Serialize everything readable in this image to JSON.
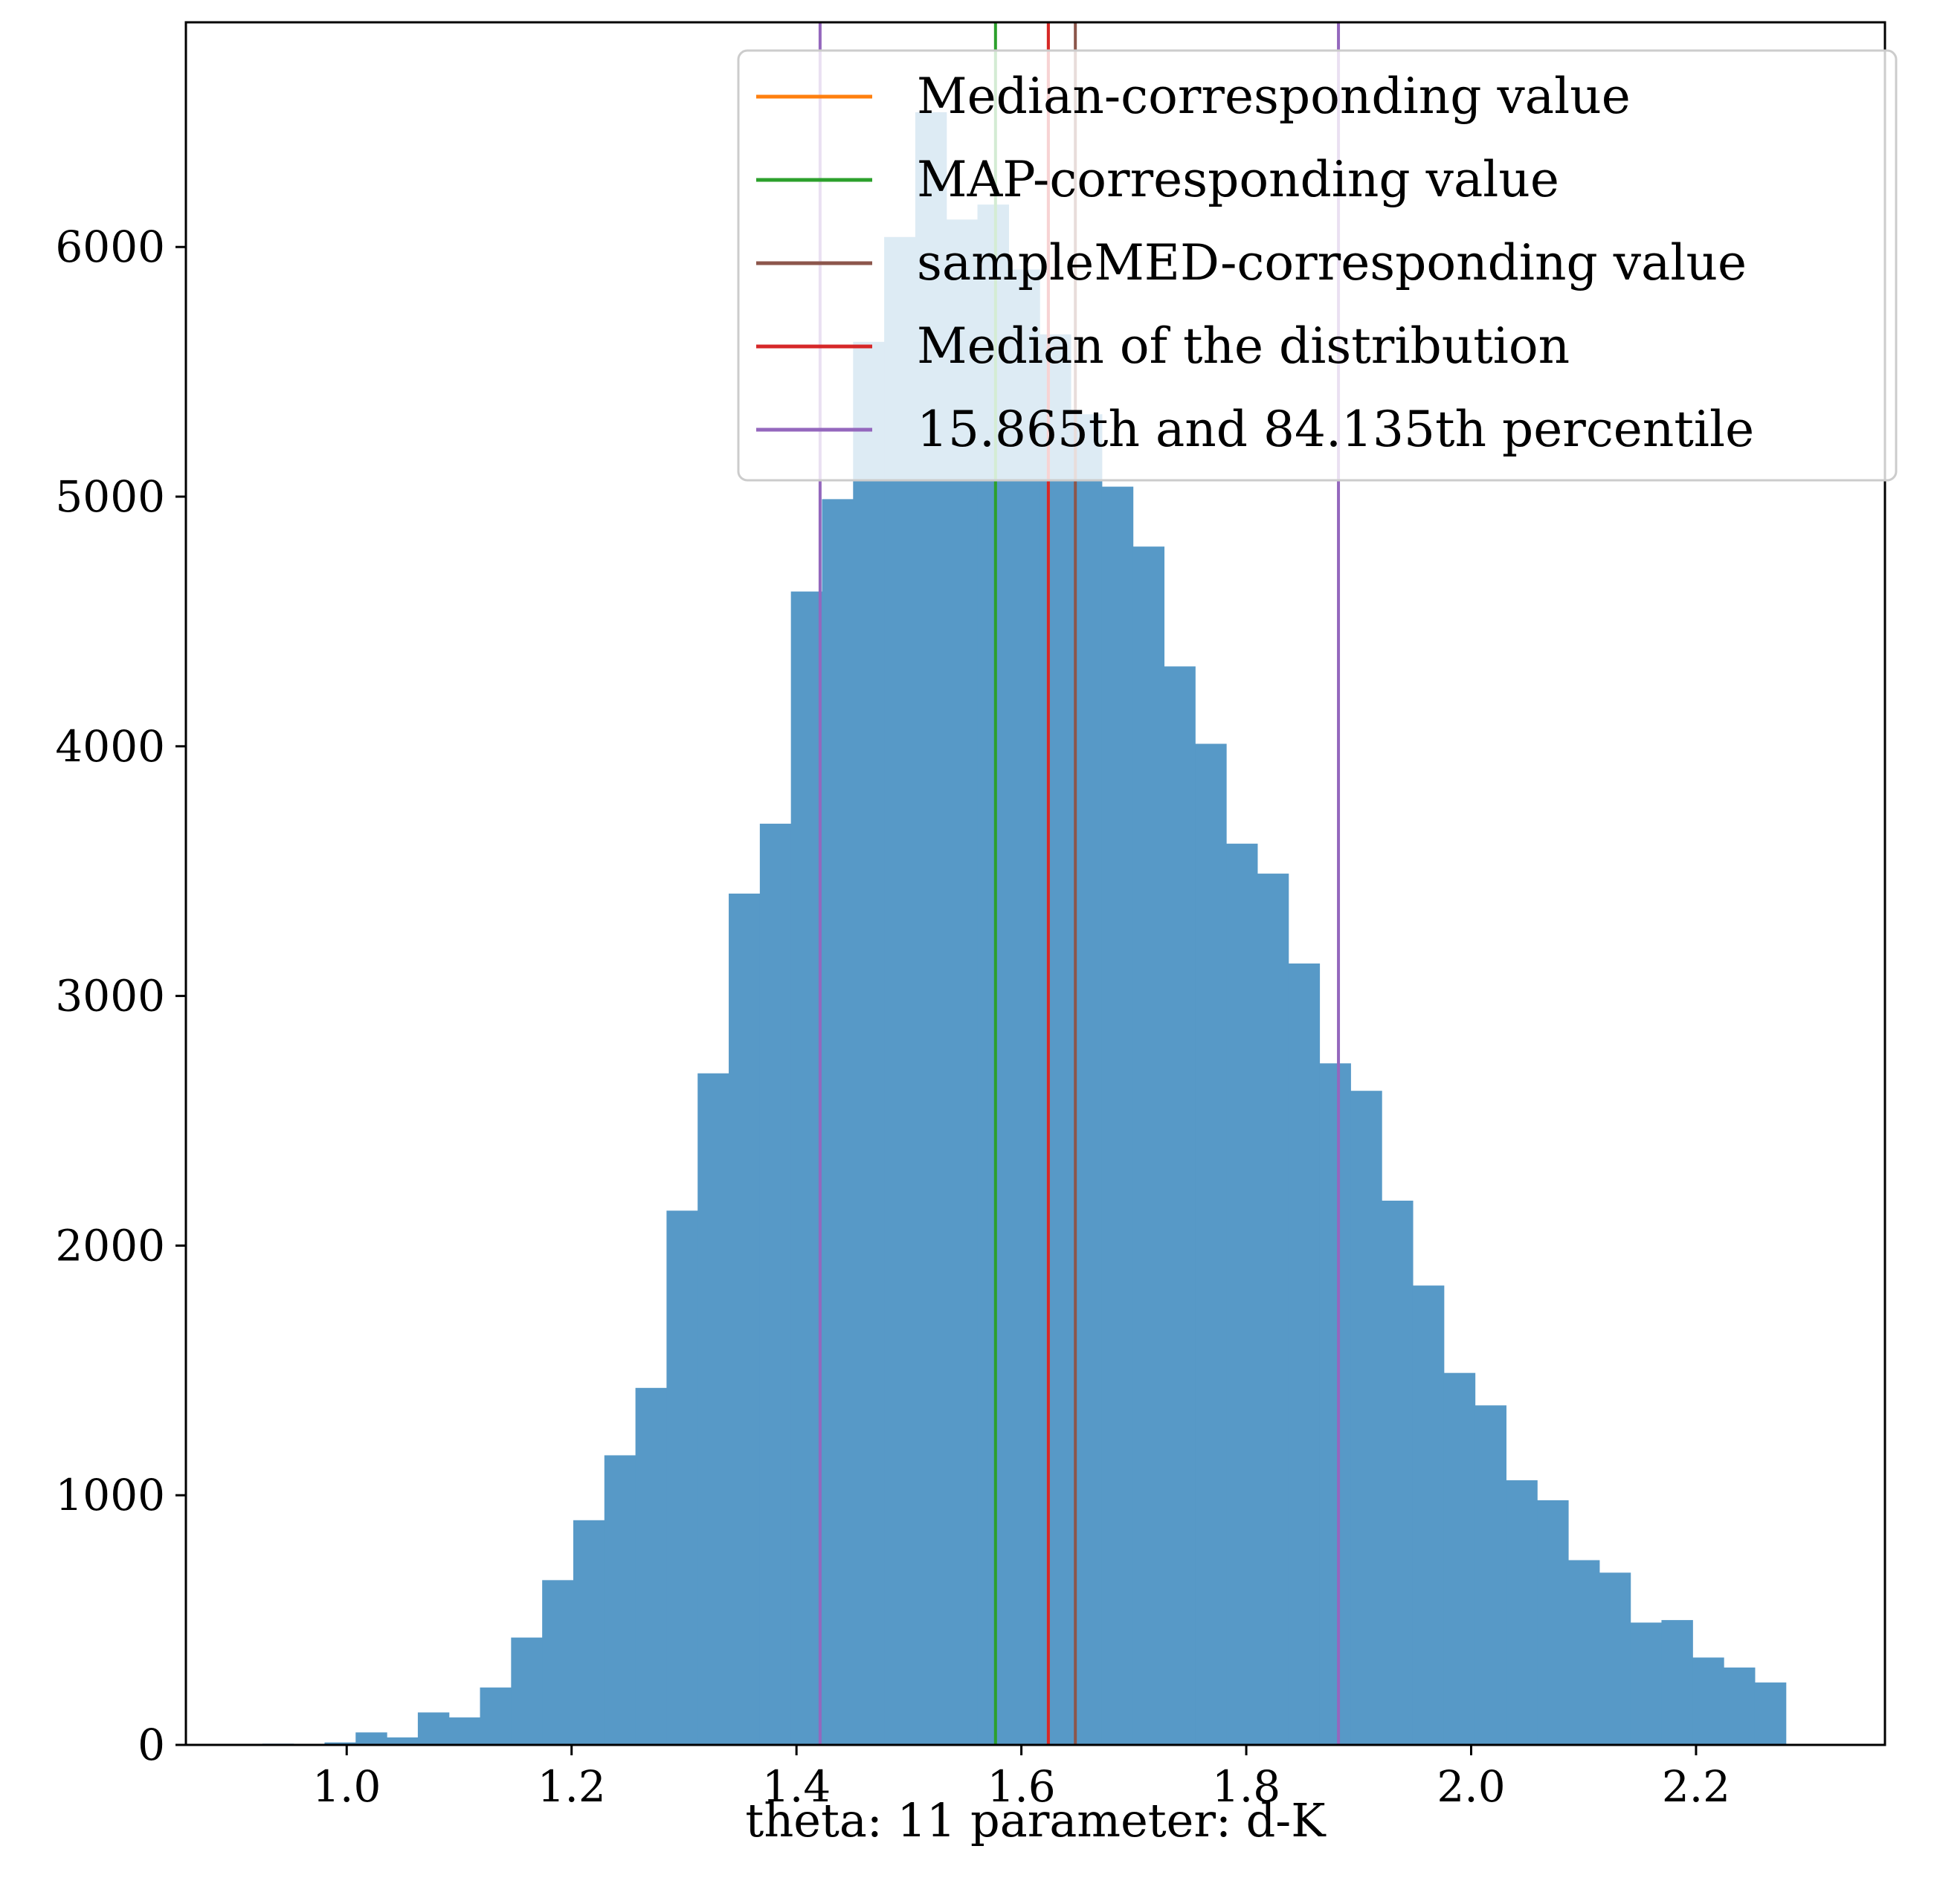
{
  "chart_data": {
    "type": "bar",
    "xlabel": "theta: 11 parameter: d-K",
    "ylabel": "",
    "title": "",
    "xlim": [
      0.857,
      2.368
    ],
    "ylim": [
      0,
      6900
    ],
    "xticks": [
      "1.0",
      "1.2",
      "1.4",
      "1.6",
      "1.8",
      "2.0",
      "2.2"
    ],
    "yticks": [
      "0",
      "1000",
      "2000",
      "3000",
      "4000",
      "5000",
      "6000"
    ],
    "bin_start": 0.925,
    "bin_width": 0.02765,
    "values": [
      5,
      2,
      10,
      50,
      30,
      130,
      110,
      230,
      430,
      660,
      900,
      1160,
      1430,
      2140,
      2690,
      3410,
      3690,
      4620,
      4990,
      5620,
      6040,
      6540,
      6110,
      6170,
      5910,
      5650,
      5330,
      5040,
      4800,
      4320,
      4010,
      3610,
      3490,
      3130,
      2730,
      2620,
      2180,
      1840,
      1490,
      1360,
      1060,
      980,
      740,
      690,
      490,
      500,
      350,
      310,
      250
    ],
    "bar_color": "#5799c7",
    "vlines": [
      {
        "name": "Median-corresponding value",
        "x": 1.624,
        "color": "#ff7f0e"
      },
      {
        "name": "MAP-corresponding value",
        "x": 1.577,
        "color": "#2ca02c"
      },
      {
        "name": "sampleMED-corresponding value",
        "x": 1.648,
        "color": "#8c564b"
      },
      {
        "name": "Median of the distribution",
        "x": 1.624,
        "color": "#d62728"
      },
      {
        "name": "15.865th and 84.135th percentile",
        "x": 1.421,
        "x2": 1.882,
        "color": "#9467bd"
      }
    ],
    "legend": {
      "placement": "top-right",
      "entries": [
        {
          "label": "Median-corresponding value",
          "color": "#ff7f0e"
        },
        {
          "label": "MAP-corresponding value",
          "color": "#2ca02c"
        },
        {
          "label": "sampleMED-corresponding value",
          "color": "#8c564b"
        },
        {
          "label": "Median of the distribution",
          "color": "#d62728"
        },
        {
          "label": "15.865th and 84.135th percentile",
          "color": "#9467bd"
        }
      ]
    },
    "grid": false
  }
}
